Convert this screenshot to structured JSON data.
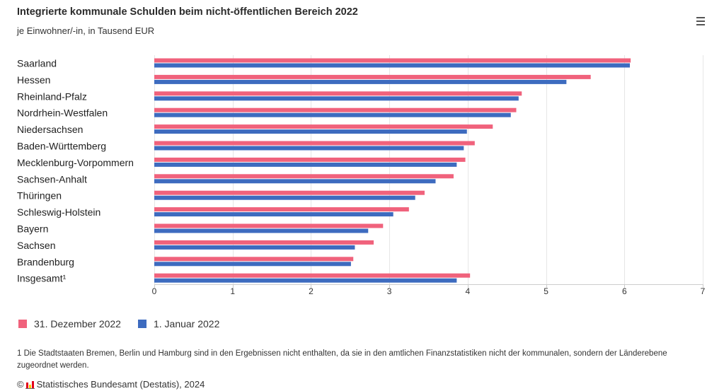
{
  "menu": {
    "icon": "menu-icon"
  },
  "chart_data": {
    "type": "bar",
    "orientation": "horizontal",
    "title": "Integrierte kommunale Schulden beim nicht-öffentlichen Bereich 2022",
    "subtitle": "je Einwohner/-in, in Tausend EUR",
    "categories": [
      "Saarland",
      "Hessen",
      "Rheinland-Pfalz",
      "Nordrhein-Westfalen",
      "Niedersachsen",
      "Baden-Württemberg",
      "Mecklenburg-Vorpommern",
      "Sachsen-Anhalt",
      "Thüringen",
      "Schleswig-Holstein",
      "Bayern",
      "Sachsen",
      "Brandenburg",
      "Insgesamt¹"
    ],
    "series": [
      {
        "name": "31. Dezember 2022",
        "color": "#f0627c",
        "values": [
          6.08,
          5.57,
          4.69,
          4.62,
          4.32,
          4.09,
          3.97,
          3.82,
          3.45,
          3.25,
          2.92,
          2.8,
          2.54,
          4.03
        ]
      },
      {
        "name": "1. Januar 2022",
        "color": "#3d6bbf",
        "values": [
          6.07,
          5.26,
          4.65,
          4.55,
          3.99,
          3.95,
          3.86,
          3.59,
          3.33,
          3.05,
          2.73,
          2.56,
          2.51,
          3.86
        ]
      }
    ],
    "xlim": [
      0,
      7
    ],
    "ticks": [
      0,
      1,
      2,
      3,
      4,
      5,
      6,
      7
    ],
    "grid": "vertical",
    "legend_position": "bottom-left"
  },
  "footnote": "1 Die Stadtstaaten Bremen, Berlin und Hamburg sind in den Ergebnissen nicht enthalten, da sie in den amtlichen Finanzstatistiken nicht der kommunalen, sondern der Länderebene zugeordnet werden.",
  "source": {
    "copyright": "©",
    "logo_icon": "destatis-logo-icon",
    "text": "Statistisches Bundesamt (Destatis), 2024"
  }
}
